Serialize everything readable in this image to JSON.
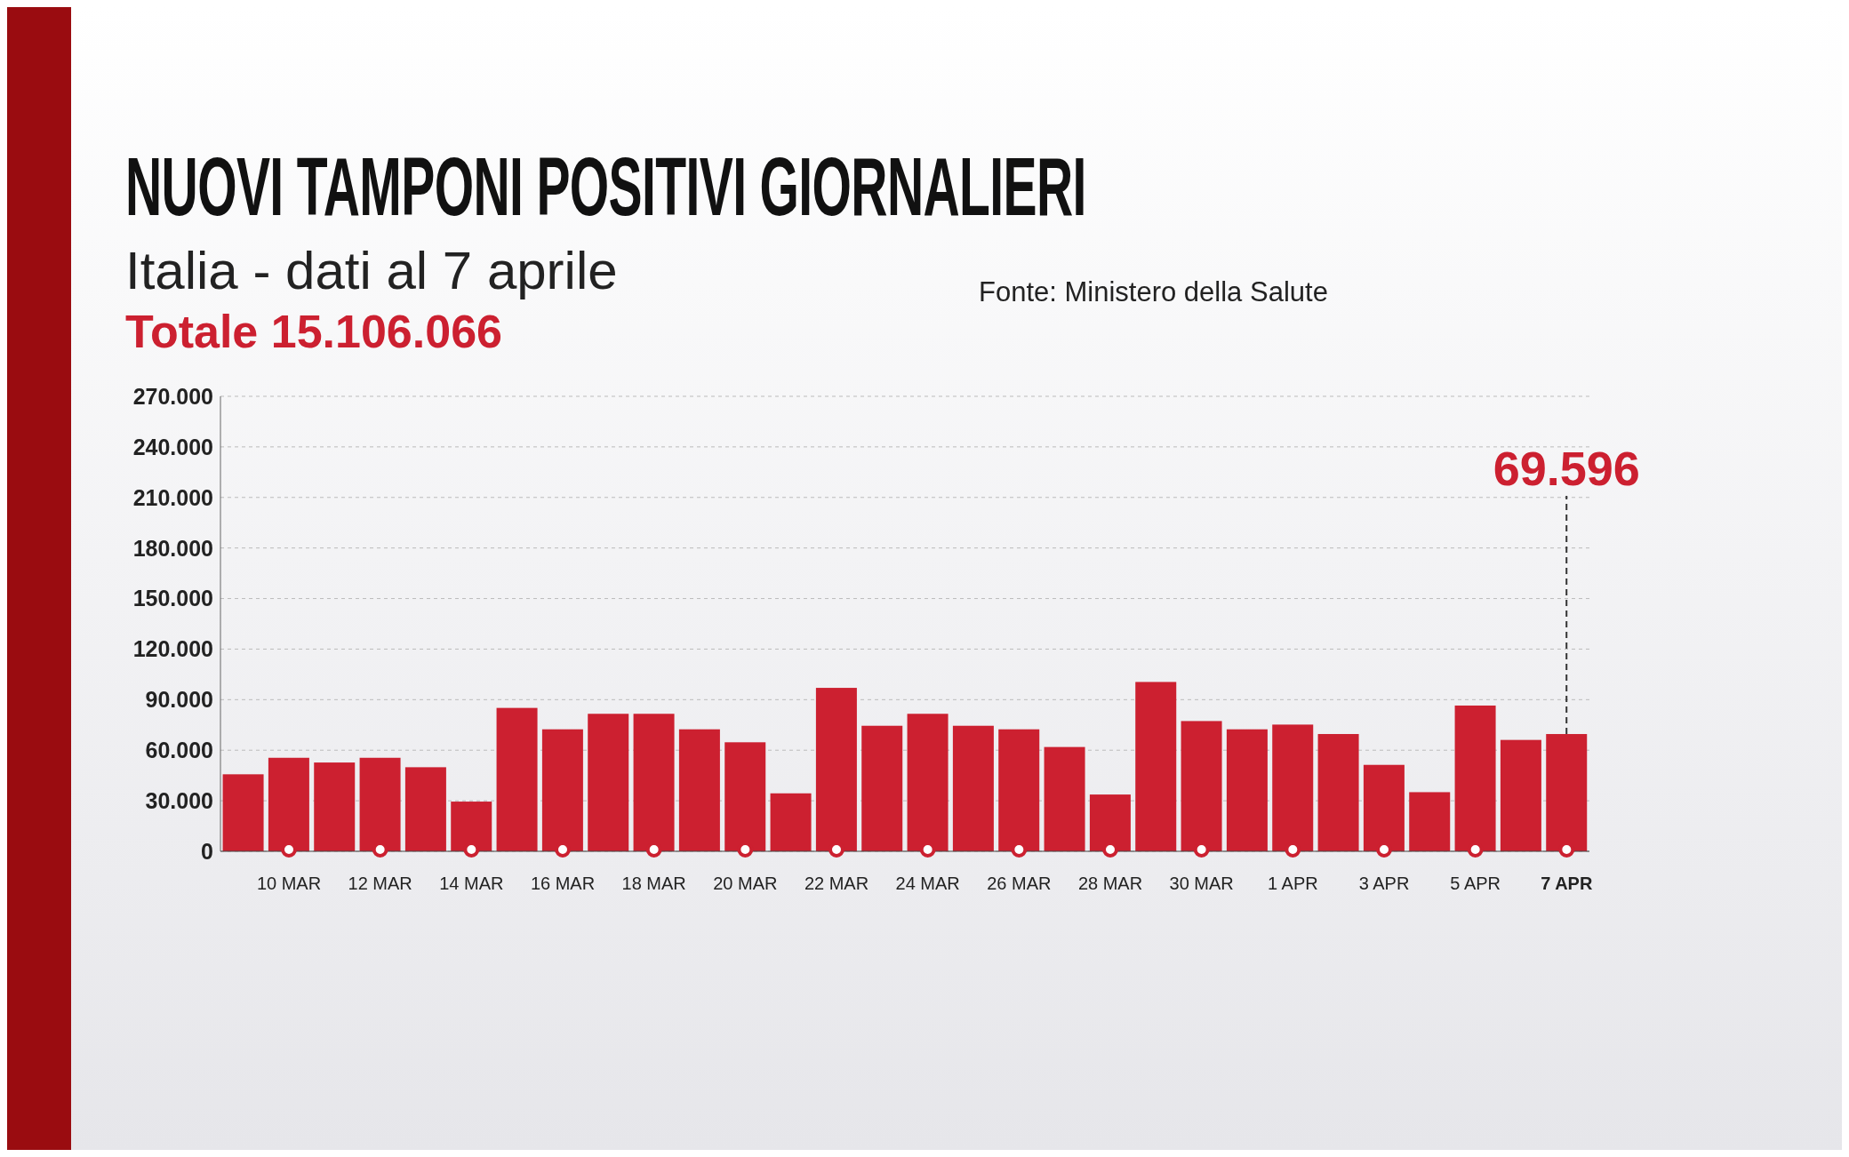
{
  "chart_data": {
    "type": "bar",
    "title": "NUOVI TAMPONI POSITIVI GIORNALIERI",
    "subtitle": "Italia - dati al 7 aprile",
    "annotations": [
      "Totale 15.106.066",
      "Fonte: Ministero della Salute",
      {
        "text": "69.596",
        "x": "7 APR",
        "y": 69596
      }
    ],
    "categories": [
      null,
      "10 MAR",
      null,
      "12 MAR",
      null,
      "14 MAR",
      null,
      "16 MAR",
      null,
      "18 MAR",
      null,
      "20 MAR",
      null,
      "22 MAR",
      null,
      "24 MAR",
      null,
      "26 MAR",
      null,
      "28 MAR",
      null,
      "30 MAR",
      null,
      "1 APR",
      null,
      "3 APR",
      null,
      "5 APR",
      null,
      "7 APR"
    ],
    "values": [
      45700,
      55500,
      52700,
      55500,
      49900,
      29500,
      85100,
      72400,
      81600,
      81600,
      72400,
      64700,
      34400,
      97000,
      74500,
      81600,
      74500,
      72400,
      61900,
      33700,
      100500,
      77300,
      72400,
      75200,
      69600,
      51300,
      35100,
      86500,
      66100,
      69596
    ],
    "color": "#cc2030",
    "ylim": [
      0,
      270000
    ],
    "yticks": [
      {
        "value": 0,
        "label": "0"
      },
      {
        "value": 30000,
        "label": "30.000"
      },
      {
        "value": 60000,
        "label": "60.000"
      },
      {
        "value": 90000,
        "label": "90.000"
      },
      {
        "value": 120000,
        "label": "120.000"
      },
      {
        "value": 150000,
        "label": "150.000"
      },
      {
        "value": 180000,
        "label": "180.000"
      },
      {
        "value": 210000,
        "label": "210.000"
      },
      {
        "value": 240000,
        "label": "240.000"
      },
      {
        "value": 270000,
        "label": "270.000"
      }
    ],
    "grid": "y"
  }
}
